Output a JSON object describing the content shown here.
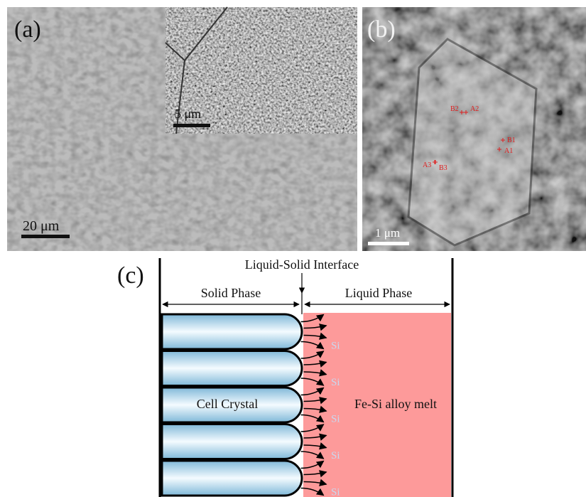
{
  "panels": {
    "a": {
      "label": "(a)",
      "inset_scale": "5 μm",
      "scale": "20 μm"
    },
    "b": {
      "label": "(b)",
      "points": [
        "B2",
        "A2",
        "B1",
        "A1",
        "A3",
        "B3"
      ],
      "scale": "1 μm"
    },
    "c": {
      "label": "(c)",
      "interface": "Liquid-Solid Interface",
      "solid_phase": "Solid Phase",
      "liquid_phase": "Liquid Phase",
      "cell": "Cell Crystal",
      "melt": "Fe-Si alloy melt",
      "solute": [
        "Si",
        "Si",
        "Si",
        "Si",
        "Si"
      ]
    }
  }
}
